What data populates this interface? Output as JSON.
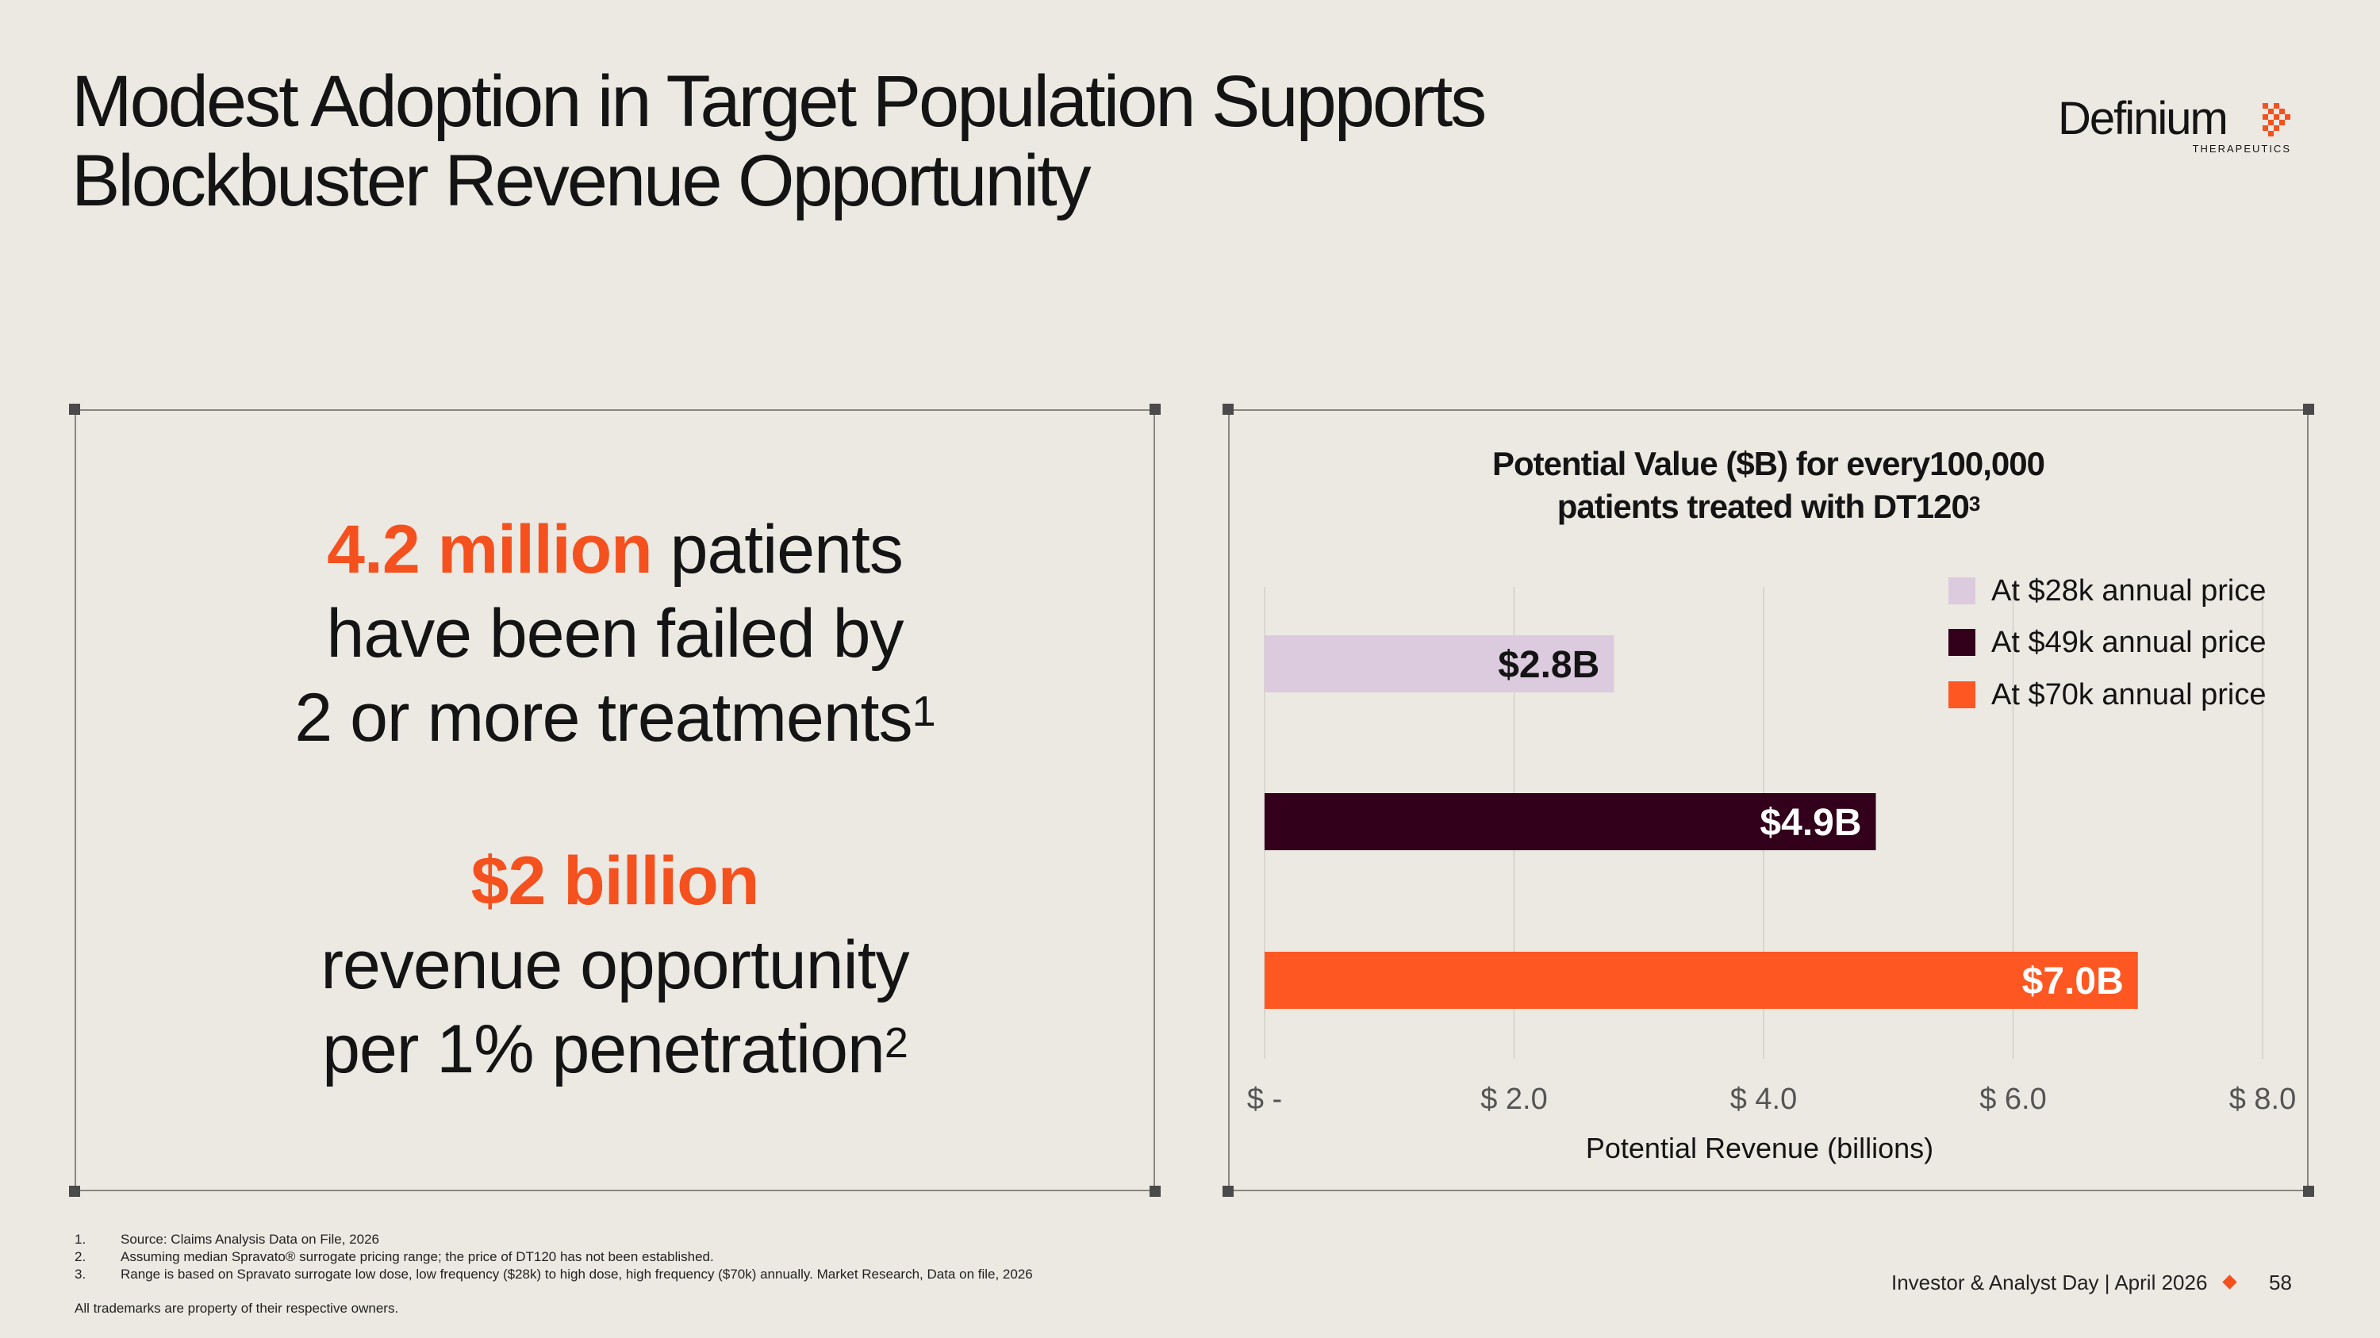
{
  "title": {
    "line1": "Modest Adoption in Target Population Supports",
    "line2": "Blockbuster Revenue Opportunity"
  },
  "logo": {
    "word": "Definium",
    "sub": "THERAPEUTICS",
    "color": "#f4511e"
  },
  "stats": {
    "patients_number": "4.2 million",
    "patients_text": "patients",
    "line2": "have been failed by",
    "line3": "2 or more treatments",
    "line3_sup": "1",
    "revenue_number": "$2 billion",
    "line5": "revenue opportunity",
    "line6": "per 1% penetration",
    "line6_sup": "2"
  },
  "chart_data": {
    "type": "bar",
    "orientation": "horizontal",
    "title_line1": "Potential Value ($B) for every100,000",
    "title_line2": "patients treated with DT120",
    "title_sup": "3",
    "xlabel": "Potential Revenue (billions)",
    "xlim": [
      0,
      8
    ],
    "xticks": [
      0,
      2,
      4,
      6,
      8
    ],
    "xtick_labels": [
      "$ -",
      "$ 2.0",
      "$ 4.0",
      "$ 6.0",
      "$ 8.0"
    ],
    "grid": true,
    "legend_position": "top-right",
    "series": [
      {
        "name": "At $28k annual price",
        "value": 2.8,
        "label": "$2.8B",
        "color": "#dccbdf",
        "label_color": "#141414"
      },
      {
        "name": "At $49k annual price",
        "value": 4.9,
        "label": "$4.9B",
        "color": "#33001c",
        "label_color": "#ffffff"
      },
      {
        "name": "At $70k annual price",
        "value": 7.0,
        "label": "$7.0B",
        "color": "#ff5722",
        "label_color": "#ffffff"
      }
    ]
  },
  "footnotes": [
    {
      "num": "1.",
      "text": "Source: Claims Analysis Data on File, 2026"
    },
    {
      "num": "2.",
      "text": "Assuming median Spravato® surrogate pricing range; the price of DT120 has not been established."
    },
    {
      "num": "3.",
      "text": "Range is based on Spravato surrogate low dose, low frequency ($28k) to high dose, high frequency ($70k) annually. Market Research, Data on file, 2026"
    }
  ],
  "trademark": "All trademarks are property of their respective owners.",
  "footer": {
    "text": "Investor & Analyst Day | April 2026",
    "page": "58"
  }
}
